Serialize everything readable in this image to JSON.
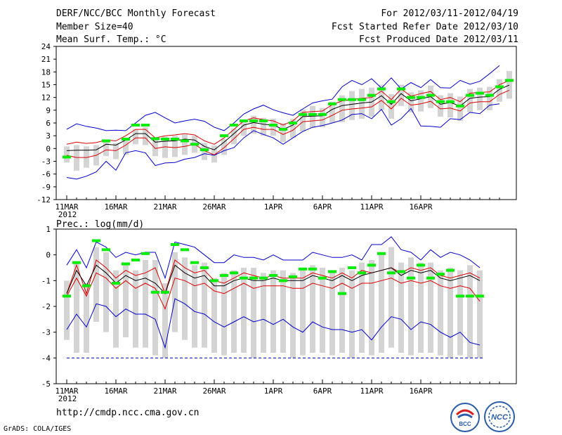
{
  "header": {
    "title": "DERF/NCC/BCC Monthly Forecast",
    "member_size": "Member Size=40",
    "variable": "Mean Surf. Temp.: °C",
    "period": "For 2012/03/11-2012/04/19",
    "start_date": "Fcst Started Refer Date 2012/03/10",
    "produced_date": "Fcst Produced Date 2012/03/11"
  },
  "footer": {
    "url": "http://cmdp.ncc.cma.gov.cn",
    "grads": "GrADS: COLA/IGES",
    "logo_bcc": "BCC",
    "logo_ncc": "NCC"
  },
  "colors": {
    "envelope": "#0000cc",
    "sigma": "#dd0000",
    "mean": "#000000",
    "bar": "#d4d4d4",
    "climatology": "#00ee00"
  },
  "chart_data": [
    {
      "type": "line",
      "title": "Mean Surf. Temp.: °C",
      "x_tick_labels": [
        "11MAR",
        "16MAR",
        "21MAR",
        "26MAR",
        "1APR",
        "6APR",
        "11APR",
        "16APR"
      ],
      "x_tick_index": [
        0,
        5,
        10,
        15,
        21,
        26,
        31,
        36
      ],
      "year_label": "2012",
      "ylim": [
        -12,
        24
      ],
      "yticks": [
        -12,
        -9,
        -6,
        -3,
        0,
        3,
        6,
        9,
        12,
        15,
        18,
        21,
        24
      ],
      "days": 40,
      "series": [
        {
          "name": "max",
          "values": [
            4.5,
            5.8,
            5.2,
            4.8,
            4.2,
            4.3,
            4.2,
            6.0,
            7.8,
            8.5,
            7.2,
            6.0,
            6.5,
            6.9,
            6.4,
            5.0,
            4.2,
            6.0,
            8.1,
            9.3,
            10.2,
            9.1,
            8.4,
            7.8,
            9.3,
            10.7,
            11.2,
            11.6,
            14.5,
            16.0,
            15.0,
            16.4,
            14.2,
            16.6,
            14.0,
            15.5,
            14.3,
            16.2,
            14.3,
            14.2,
            16.0,
            15.1,
            15.8,
            17.6,
            19.5
          ]
        },
        {
          "name": "upper",
          "values": [
            1.0,
            1.5,
            1.2,
            1.4,
            2.0,
            1.8,
            3.0,
            4.5,
            4.5,
            2.5,
            3.0,
            3.2,
            3.5,
            3.2,
            1.8,
            1.0,
            2.5,
            4.5,
            6.5,
            7.2,
            6.8,
            6.5,
            5.5,
            6.5,
            8.5,
            8.7,
            8.8,
            10.3,
            11.2,
            11.5,
            11.8,
            12.0,
            13.5,
            11.5,
            14.0,
            12.3,
            12.9,
            13.4,
            11.5,
            12.0,
            11.0,
            13.0,
            13.2,
            13.3,
            15.0,
            16.0
          ]
        },
        {
          "name": "mean",
          "values": [
            -0.5,
            -0.4,
            -0.4,
            -0.3,
            1.0,
            0.8,
            2.0,
            3.5,
            3.5,
            1.5,
            1.7,
            1.8,
            2.2,
            2.0,
            0.5,
            -0.3,
            1.5,
            3.5,
            5.5,
            6.1,
            5.7,
            5.5,
            4.5,
            5.5,
            7.5,
            7.6,
            7.7,
            9.2,
            10.1,
            10.4,
            10.7,
            10.9,
            12.4,
            10.4,
            12.9,
            11.2,
            11.7,
            12.2,
            10.4,
            10.8,
            10.0,
            11.8,
            12.1,
            12.2,
            13.9,
            14.9
          ]
        },
        {
          "name": "lower",
          "values": [
            -1.6,
            -2.1,
            -2.1,
            -1.6,
            -0.3,
            -0.5,
            0.8,
            2.5,
            2.5,
            0.0,
            0.4,
            0.2,
            0.5,
            1.0,
            -0.5,
            -1.5,
            0.2,
            2.3,
            4.5,
            5.0,
            4.5,
            4.5,
            3.3,
            4.3,
            6.3,
            6.5,
            6.7,
            7.8,
            9.0,
            9.3,
            9.5,
            9.8,
            11.3,
            9.3,
            11.8,
            10.2,
            10.5,
            11.1,
            9.3,
            9.5,
            8.8,
            10.7,
            11.0,
            11.0,
            12.7,
            13.7
          ]
        },
        {
          "name": "min",
          "values": [
            -6.8,
            -7.2,
            -6.5,
            -5.5,
            -3.0,
            -5.1,
            -1.0,
            -0.5,
            -1.0,
            -4.0,
            -3.4,
            -3.3,
            -2.5,
            -2.1,
            -1.2,
            -1.6,
            -0.5,
            0.2,
            2.5,
            4.2,
            3.3,
            2.5,
            1.0,
            2.5,
            4.0,
            5.0,
            5.4,
            6.0,
            6.7,
            8.0,
            8.2,
            7.0,
            9.2,
            5.5,
            7.0,
            9.4,
            5.3,
            5.2,
            5.0,
            7.0,
            6.8,
            8.5,
            8.2,
            10.2,
            10.5
          ]
        },
        {
          "name": "bar_top",
          "values": [
            0.5,
            0.8,
            0.5,
            0.8,
            1.5,
            1.3,
            2.5,
            4.5,
            5.0,
            2.7,
            2.8,
            3.0,
            3.3,
            3.0,
            1.3,
            0.7,
            2.2,
            4.7,
            6.8,
            7.7,
            7.2,
            7.0,
            6.0,
            7.0,
            9.2,
            10.0,
            9.5,
            11.0,
            12.5,
            13.5,
            14.0,
            14.3,
            15.0,
            12.8,
            15.0,
            13.2,
            13.7,
            14.8,
            12.5,
            13.0,
            12.2,
            14.0,
            14.3,
            14.5,
            16.3,
            18.2
          ]
        },
        {
          "name": "bar_bottom",
          "values": [
            -3.3,
            -5.2,
            -4.5,
            -4.0,
            -1.8,
            -2.5,
            -1.5,
            1.0,
            0.8,
            -1.8,
            -2.2,
            -2.0,
            -1.5,
            -1.0,
            -2.7,
            -3.3,
            -1.5,
            1.0,
            3.0,
            3.5,
            3.0,
            3.0,
            1.5,
            2.5,
            4.0,
            4.8,
            5.0,
            6.0,
            6.2,
            6.7,
            7.0,
            7.5,
            9.0,
            7.0,
            10.0,
            8.5,
            8.7,
            9.5,
            7.5,
            7.3,
            6.5,
            8.5,
            9.0,
            9.0,
            11.0,
            11.7
          ]
        },
        {
          "name": "climatology",
          "values": [
            -2.0,
            null,
            null,
            null,
            1.8,
            null,
            2.2,
            5.5,
            5.5,
            2.3,
            2.2,
            2.2,
            1.8,
            1.0,
            -0.3,
            null,
            3.0,
            5.5,
            6.5,
            6.5,
            6.5,
            5.5,
            4.5,
            6.0,
            8.0,
            8.0,
            8.0,
            10.5,
            11.5,
            11.5,
            11.5,
            12.5,
            14.0,
            11.0,
            14.0,
            12.0,
            12.0,
            12.5,
            11.0,
            11.0,
            10.0,
            12.5,
            13.0,
            12.5,
            14.5,
            16.0
          ]
        }
      ]
    },
    {
      "type": "line",
      "title": "Prec.: log(mm/d)",
      "x_tick_labels": [
        "11MAR",
        "16MAR",
        "21MAR",
        "26MAR",
        "1APR",
        "6APR",
        "11APR",
        "16APR"
      ],
      "x_tick_index": [
        0,
        5,
        10,
        15,
        21,
        26,
        31,
        36
      ],
      "year_label": "2012",
      "ylim": [
        -5,
        1
      ],
      "yticks": [
        -5,
        -4,
        -3,
        -2,
        -1,
        0,
        1
      ],
      "days": 40,
      "series": [
        {
          "name": "max",
          "values": [
            -0.4,
            0.2,
            -0.5,
            0.5,
            0.3,
            -0.1,
            0.1,
            0.0,
            0.1,
            0.1,
            -0.9,
            0.5,
            0.4,
            0.3,
            0.0,
            -0.3,
            -0.3,
            0.0,
            -0.1,
            -0.1,
            -0.2,
            0.0,
            -0.2,
            -0.2,
            -0.2,
            0.1,
            0.0,
            -0.1,
            -0.1,
            0.0,
            -0.2,
            0.4,
            0.4,
            0.7,
            0.2,
            0.1,
            -0.2,
            0.2,
            -0.1,
            0.1,
            0.0,
            -0.2,
            -0.5
          ]
        },
        {
          "name": "upper",
          "values": [
            -1.5,
            -0.4,
            -1.5,
            -0.2,
            -0.5,
            -0.9,
            -0.6,
            -0.8,
            -0.7,
            -0.5,
            -1.5,
            -0.2,
            -0.5,
            -0.7,
            -0.6,
            -1.0,
            -1.1,
            -0.9,
            -0.7,
            -0.8,
            -0.9,
            -0.8,
            -0.9,
            -0.9,
            -0.9,
            -0.7,
            -0.8,
            -0.9,
            -0.7,
            -0.9,
            -0.6,
            -0.7,
            -0.6,
            -0.5,
            -0.7,
            -0.5,
            -0.6,
            -0.5,
            -0.8,
            -0.9,
            -0.8,
            -0.7,
            -0.9
          ]
        },
        {
          "name": "mean",
          "values": [
            -1.5,
            -0.6,
            -1.2,
            -0.4,
            -0.7,
            -1.1,
            -0.8,
            -1.0,
            -0.9,
            -1.1,
            -1.5,
            -0.4,
            -0.7,
            -0.9,
            -0.8,
            -1.2,
            -1.2,
            -1.0,
            -0.9,
            -1.0,
            -1.0,
            -0.9,
            -1.0,
            -1.0,
            -1.0,
            -0.8,
            -0.9,
            -1.0,
            -0.8,
            -1.0,
            -0.8,
            -0.7,
            -0.6,
            -0.5,
            -0.8,
            -0.6,
            -0.7,
            -0.6,
            -0.9,
            -1.0,
            -0.9,
            -0.8,
            -1.0
          ]
        },
        {
          "name": "lower",
          "values": [
            -1.6,
            -0.9,
            -1.6,
            -0.7,
            -0.9,
            -1.3,
            -1.0,
            -1.3,
            -1.1,
            -1.3,
            -2.1,
            -0.9,
            -1.0,
            -1.2,
            -1.1,
            -1.4,
            -1.5,
            -1.3,
            -1.1,
            -1.3,
            -1.2,
            -1.2,
            -1.2,
            -1.3,
            -1.3,
            -1.1,
            -1.2,
            -1.3,
            -1.1,
            -1.3,
            -1.1,
            -1.1,
            -1.0,
            -0.9,
            -1.1,
            -1.0,
            -1.1,
            -1.0,
            -1.2,
            -1.3,
            -1.2,
            -1.3,
            -1.8
          ]
        },
        {
          "name": "min",
          "values": [
            -2.9,
            -2.3,
            -2.8,
            -1.9,
            -2.0,
            -2.4,
            -2.1,
            -2.3,
            -2.3,
            -2.5,
            -3.6,
            -1.7,
            -1.9,
            -2.2,
            -2.3,
            -2.6,
            -2.8,
            -2.6,
            -2.4,
            -2.6,
            -2.5,
            -2.7,
            -2.5,
            -2.8,
            -3.0,
            -2.6,
            -2.8,
            -2.9,
            -2.9,
            -3.0,
            -2.9,
            -3.3,
            -2.8,
            -2.4,
            -2.5,
            -2.9,
            -2.6,
            -2.7,
            -3.0,
            -3.2,
            -3.0,
            -3.4,
            -3.5
          ]
        },
        {
          "name": "bar_top",
          "values": [
            -1.0,
            -0.3,
            -1.1,
            0.3,
            0.1,
            -0.6,
            -0.4,
            -0.6,
            -0.2,
            -0.2,
            -1.1,
            0.1,
            -0.1,
            -0.4,
            -0.3,
            -0.9,
            -0.7,
            -0.6,
            -0.5,
            -0.5,
            -0.7,
            -0.6,
            -0.6,
            -0.7,
            -0.6,
            -0.4,
            -0.5,
            -0.6,
            -0.5,
            -0.6,
            -0.3,
            -0.2,
            0.0,
            0.3,
            -0.3,
            -0.1,
            -0.3,
            -0.3,
            -0.6,
            -0.5,
            -0.6,
            -0.4,
            -0.6
          ]
        },
        {
          "name": "bar_bottom",
          "values": [
            -3.3,
            -3.8,
            -3.8,
            -2.6,
            -3.0,
            -3.6,
            -3.2,
            -3.6,
            -3.6,
            -3.9,
            -4.0,
            -3.0,
            -3.3,
            -3.6,
            -3.6,
            -3.8,
            -3.9,
            -3.8,
            -3.8,
            -4.0,
            -3.8,
            -3.8,
            -3.8,
            -4.0,
            -3.9,
            -3.8,
            -3.8,
            -3.9,
            -3.8,
            -4.0,
            -3.8,
            -3.9,
            -3.8,
            -3.6,
            -3.8,
            -3.9,
            -3.8,
            -3.8,
            -3.9,
            -4.0,
            -3.9,
            -4.0,
            -4.0
          ]
        },
        {
          "name": "climatology",
          "values": [
            -1.6,
            -0.3,
            -1.2,
            0.55,
            0.2,
            -1.1,
            -0.35,
            -0.2,
            0.05,
            -1.45,
            -1.45,
            0.4,
            0.2,
            -0.3,
            -0.5,
            -1.0,
            -0.8,
            -0.7,
            -0.9,
            -0.9,
            -0.9,
            -0.8,
            -1.0,
            -0.85,
            -0.55,
            -0.55,
            -0.9,
            -0.65,
            -1.5,
            -0.5,
            -0.7,
            -0.4,
            0.05,
            -0.7,
            -0.65,
            -0.9,
            -0.4,
            -0.9,
            -0.75,
            -0.6,
            -1.6,
            -1.6,
            -1.6
          ]
        },
        {
          "name": "floor",
          "values": [
            -4.0
          ]
        }
      ]
    }
  ]
}
